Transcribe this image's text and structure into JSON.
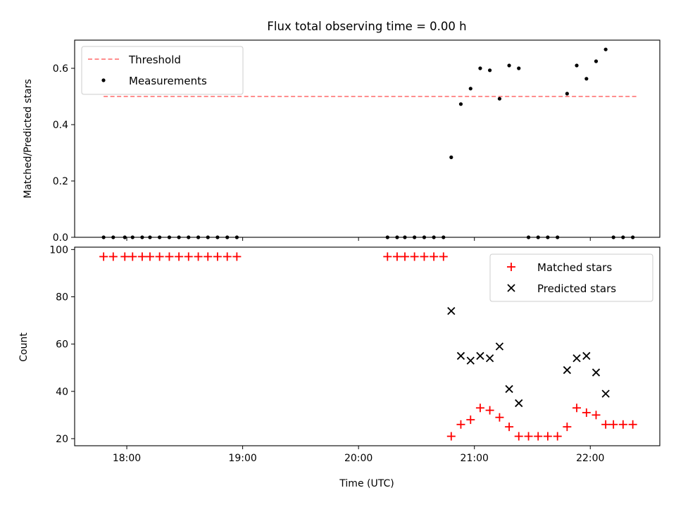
{
  "chart_data": [
    {
      "type": "scatter",
      "title": "Flux total observing time = 0.00 h",
      "xlabel": "",
      "ylabel": "Matched/Predicted stars",
      "xlim": [
        17.55,
        22.6
      ],
      "ylim": [
        0,
        0.7
      ],
      "yticks": [
        0.0,
        0.2,
        0.4,
        0.6
      ],
      "ytick_labels": [
        "0.0",
        "0.2",
        "0.4",
        "0.6"
      ],
      "threshold": {
        "name": "Threshold",
        "value": 0.5,
        "x_range": [
          17.8,
          22.4
        ],
        "color": "#ff7f7f"
      },
      "series": [
        {
          "name": "Measurements",
          "color": "#000000",
          "marker": "dot",
          "points": [
            [
              17.8,
              0
            ],
            [
              17.883,
              0
            ],
            [
              17.983,
              0
            ],
            [
              18.05,
              0
            ],
            [
              18.133,
              0
            ],
            [
              18.2,
              0
            ],
            [
              18.283,
              0
            ],
            [
              18.367,
              0
            ],
            [
              18.45,
              0
            ],
            [
              18.533,
              0
            ],
            [
              18.617,
              0
            ],
            [
              18.7,
              0
            ],
            [
              18.783,
              0
            ],
            [
              18.867,
              0
            ],
            [
              18.95,
              0
            ],
            [
              20.25,
              0
            ],
            [
              20.333,
              0
            ],
            [
              20.4,
              0
            ],
            [
              20.483,
              0
            ],
            [
              20.567,
              0
            ],
            [
              20.65,
              0
            ],
            [
              20.733,
              0
            ],
            [
              20.8,
              0.284
            ],
            [
              20.883,
              0.473
            ],
            [
              20.967,
              0.528
            ],
            [
              21.05,
              0.6
            ],
            [
              21.133,
              0.593
            ],
            [
              21.217,
              0.492
            ],
            [
              21.3,
              0.61
            ],
            [
              21.383,
              0.6
            ],
            [
              21.467,
              0
            ],
            [
              21.55,
              0
            ],
            [
              21.633,
              0
            ],
            [
              21.717,
              0
            ],
            [
              21.8,
              0.51
            ],
            [
              21.883,
              0.61
            ],
            [
              21.967,
              0.563
            ],
            [
              22.05,
              0.625
            ],
            [
              22.133,
              0.667
            ],
            [
              22.2,
              0
            ],
            [
              22.283,
              0
            ],
            [
              22.367,
              0
            ]
          ]
        }
      ],
      "legend": {
        "position": "top-left",
        "entries": [
          "Threshold",
          "Measurements"
        ]
      }
    },
    {
      "type": "scatter",
      "title": "",
      "xlabel": "Time (UTC)",
      "ylabel": "Count",
      "xlim": [
        17.55,
        22.6
      ],
      "ylim": [
        17,
        101
      ],
      "xticks": [
        18,
        19,
        20,
        21,
        22
      ],
      "xtick_labels": [
        "18:00",
        "19:00",
        "20:00",
        "21:00",
        "22:00"
      ],
      "yticks": [
        20,
        40,
        60,
        80,
        100
      ],
      "ytick_labels": [
        "20",
        "40",
        "60",
        "80",
        "100"
      ],
      "series": [
        {
          "name": "Matched stars",
          "color": "#ff0000",
          "marker": "plus",
          "points": [
            [
              17.8,
              97
            ],
            [
              17.883,
              97
            ],
            [
              17.983,
              97
            ],
            [
              18.05,
              97
            ],
            [
              18.133,
              97
            ],
            [
              18.2,
              97
            ],
            [
              18.283,
              97
            ],
            [
              18.367,
              97
            ],
            [
              18.45,
              97
            ],
            [
              18.533,
              97
            ],
            [
              18.617,
              97
            ],
            [
              18.7,
              97
            ],
            [
              18.783,
              97
            ],
            [
              18.867,
              97
            ],
            [
              18.95,
              97
            ],
            [
              20.25,
              97
            ],
            [
              20.333,
              97
            ],
            [
              20.4,
              97
            ],
            [
              20.483,
              97
            ],
            [
              20.567,
              97
            ],
            [
              20.65,
              97
            ],
            [
              20.733,
              97
            ],
            [
              20.8,
              21
            ],
            [
              20.883,
              26
            ],
            [
              20.967,
              28
            ],
            [
              21.05,
              33
            ],
            [
              21.133,
              32
            ],
            [
              21.217,
              29
            ],
            [
              21.3,
              25
            ],
            [
              21.383,
              21
            ],
            [
              21.467,
              21
            ],
            [
              21.55,
              21
            ],
            [
              21.633,
              21
            ],
            [
              21.717,
              21
            ],
            [
              21.8,
              25
            ],
            [
              21.883,
              33
            ],
            [
              21.967,
              31
            ],
            [
              22.05,
              30
            ],
            [
              22.133,
              26
            ],
            [
              22.2,
              26
            ],
            [
              22.283,
              26
            ],
            [
              22.367,
              26
            ]
          ]
        },
        {
          "name": "Predicted stars",
          "color": "#000000",
          "marker": "x",
          "points": [
            [
              20.8,
              74
            ],
            [
              20.883,
              55
            ],
            [
              20.967,
              53
            ],
            [
              21.05,
              55
            ],
            [
              21.133,
              54
            ],
            [
              21.217,
              59
            ],
            [
              21.3,
              41
            ],
            [
              21.383,
              35
            ],
            [
              21.8,
              49
            ],
            [
              21.883,
              54
            ],
            [
              21.967,
              55
            ],
            [
              22.05,
              48
            ],
            [
              22.133,
              39
            ]
          ]
        }
      ],
      "legend": {
        "position": "top-right",
        "entries": [
          "Matched stars",
          "Predicted stars"
        ]
      }
    }
  ]
}
